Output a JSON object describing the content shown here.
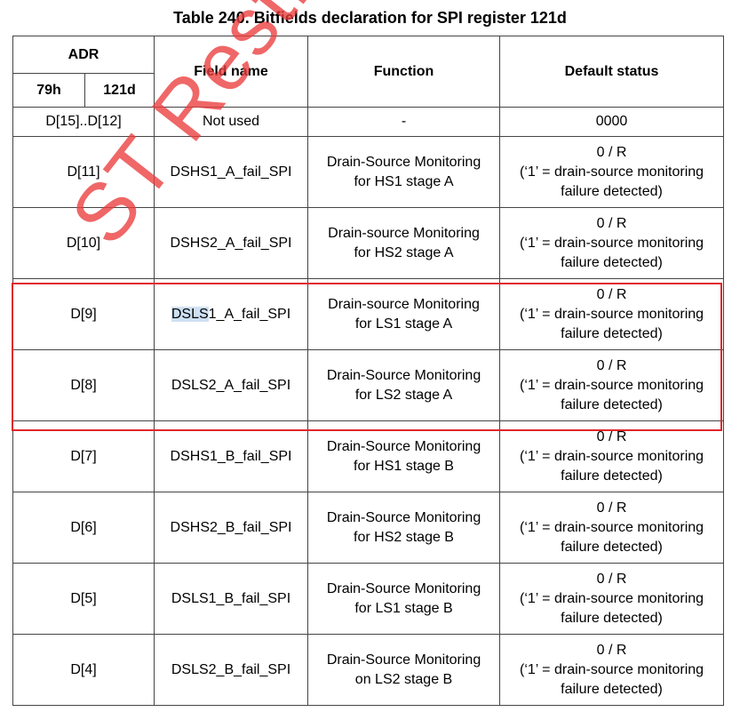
{
  "caption": "Table 240. Bitfields declaration for SPI register 121d",
  "headers": {
    "adr": "ADR",
    "adr_79h": "79h",
    "adr_121d": "121d",
    "field_name": "Field name",
    "function": "Function",
    "default_status": "Default status"
  },
  "rows": [
    {
      "adr": "D[15]..D[12]",
      "field_pre": "",
      "field_hl": "",
      "field_post": "Not used",
      "function": "-",
      "default_l1": "0000",
      "default_l2": "",
      "default_l3": ""
    },
    {
      "adr": "D[11]",
      "field_pre": "",
      "field_hl": "",
      "field_post": "DSHS1_A_fail_SPI",
      "function_l1": "Drain-Source Monitoring",
      "function_l2": "for HS1 stage A",
      "default_l1": "0 / R",
      "default_l2": "(‘1’ = drain-source monitoring",
      "default_l3": "failure detected)"
    },
    {
      "adr": "D[10]",
      "field_pre": "",
      "field_hl": "",
      "field_post": "DSHS2_A_fail_SPI",
      "function_l1": "Drain-source Monitoring",
      "function_l2": "for HS2 stage A",
      "default_l1": "0 / R",
      "default_l2": "(‘1’ = drain-source monitoring",
      "default_l3": "failure detected)"
    },
    {
      "adr": "D[9]",
      "field_pre": "",
      "field_hl": "DSLS",
      "field_post": "1_A_fail_SPI",
      "function_l1": "Drain-source Monitoring",
      "function_l2": "for LS1 stage A",
      "default_l1": "0 / R",
      "default_l2": "(‘1’ = drain-source monitoring",
      "default_l3": "failure detected)"
    },
    {
      "adr": "D[8]",
      "field_pre": "",
      "field_hl": "",
      "field_post": "DSLS2_A_fail_SPI",
      "function_l1": "Drain-Source Monitoring",
      "function_l2": "for LS2 stage A",
      "default_l1": "0 / R",
      "default_l2": "(‘1’ = drain-source monitoring",
      "default_l3": "failure detected)"
    },
    {
      "adr": "D[7]",
      "field_pre": "",
      "field_hl": "",
      "field_post": "DSHS1_B_fail_SPI",
      "function_l1": "Drain-Source Monitoring",
      "function_l2": "for HS1 stage B",
      "default_l1": "0 / R",
      "default_l2": "(‘1’ = drain-source monitoring",
      "default_l3": "failure detected)"
    },
    {
      "adr": "D[6]",
      "field_pre": "",
      "field_hl": "",
      "field_post": "DSHS2_B_fail_SPI",
      "function_l1": "Drain-Source Monitoring",
      "function_l2": "for HS2 stage B",
      "default_l1": "0 / R",
      "default_l2": "(‘1’ = drain-source monitoring",
      "default_l3": "failure detected)"
    },
    {
      "adr": "D[5]",
      "field_pre": "",
      "field_hl": "",
      "field_post": "DSLS1_B_fail_SPI",
      "function_l1": "Drain-Source Monitoring",
      "function_l2": "for LS1 stage B",
      "default_l1": "0 / R",
      "default_l2": "(‘1’ = drain-source monitoring",
      "default_l3": "failure detected)"
    },
    {
      "adr": "D[4]",
      "field_pre": "",
      "field_hl": "",
      "field_post": "DSLS2_B_fail_SPI",
      "function_l1": "Drain-Source Monitoring",
      "function_l2": "on LS2 stage B",
      "default_l1": "0 / R",
      "default_l2": "(‘1’ = drain-source monitoring",
      "default_l3": "failure detected)"
    }
  ],
  "watermark": "ST Restricted",
  "colors": {
    "highlight_box": "#e0262a",
    "watermark": "#eb3c3c",
    "text_highlight": "#cfe0f3"
  }
}
